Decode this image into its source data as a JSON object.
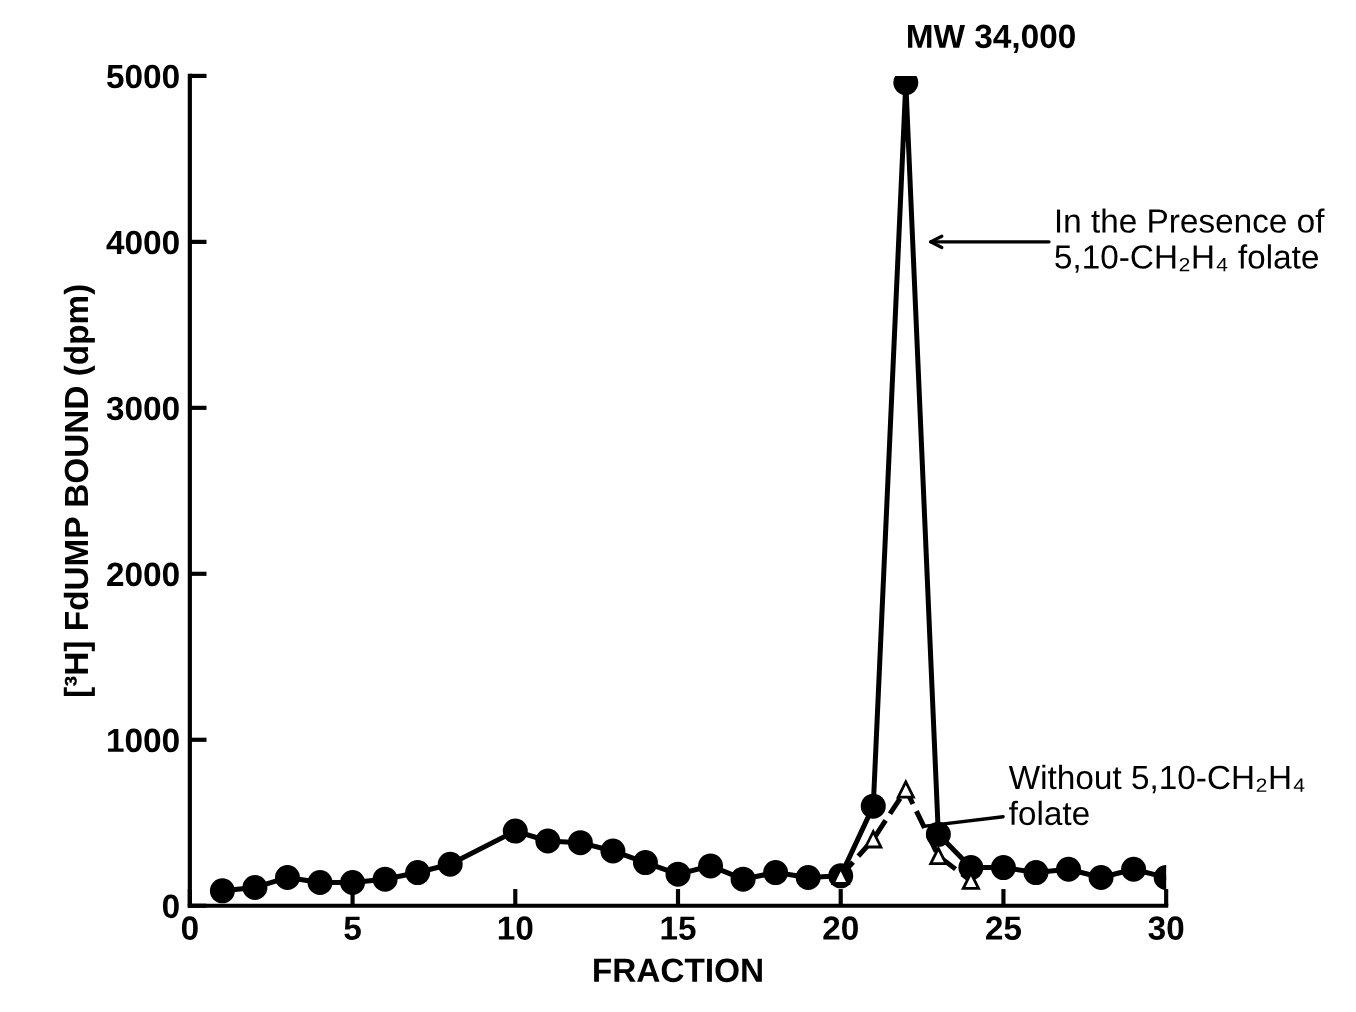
{
  "chart_data": {
    "type": "line",
    "xlabel": "FRACTION",
    "ylabel": "[³H] FdUMP BOUND (dpm)",
    "xlim": [
      0,
      30
    ],
    "ylim": [
      0,
      5000
    ],
    "xticks": [
      0,
      5,
      10,
      15,
      20,
      25,
      30
    ],
    "yticks": [
      0,
      1000,
      2000,
      3000,
      4000,
      5000
    ],
    "grid": false,
    "legend": false,
    "series": [
      {
        "color": "#000000",
        "marker": "circle",
        "line_style": "solid",
        "x": [
          1,
          2,
          3,
          4,
          5,
          6,
          7,
          8,
          10,
          11,
          12,
          13,
          14,
          15,
          16,
          17,
          18,
          19,
          20,
          21,
          22,
          23,
          24,
          25,
          26,
          27,
          28,
          29,
          30
        ],
        "values": [
          90,
          110,
          170,
          140,
          140,
          160,
          200,
          250,
          450,
          390,
          380,
          330,
          260,
          190,
          240,
          160,
          200,
          170,
          180,
          600,
          4960,
          430,
          230,
          230,
          200,
          220,
          170,
          220,
          170
        ]
      },
      {
        "color": "#000000",
        "marker": "triangle",
        "line_style": "dashed",
        "x": [
          20,
          21,
          22,
          23,
          24
        ],
        "values": [
          180,
          400,
          700,
          300,
          150
        ]
      }
    ],
    "annotations": [
      {
        "text": "MW 34,000",
        "x": 22,
        "y": 4960
      },
      "In the Presence of\n5,10-CH₂H₄ folate",
      {
        "text": "Without 5,10-CH₂H₄\nfolate",
        "x": 22.6,
        "y": 480
      }
    ]
  }
}
